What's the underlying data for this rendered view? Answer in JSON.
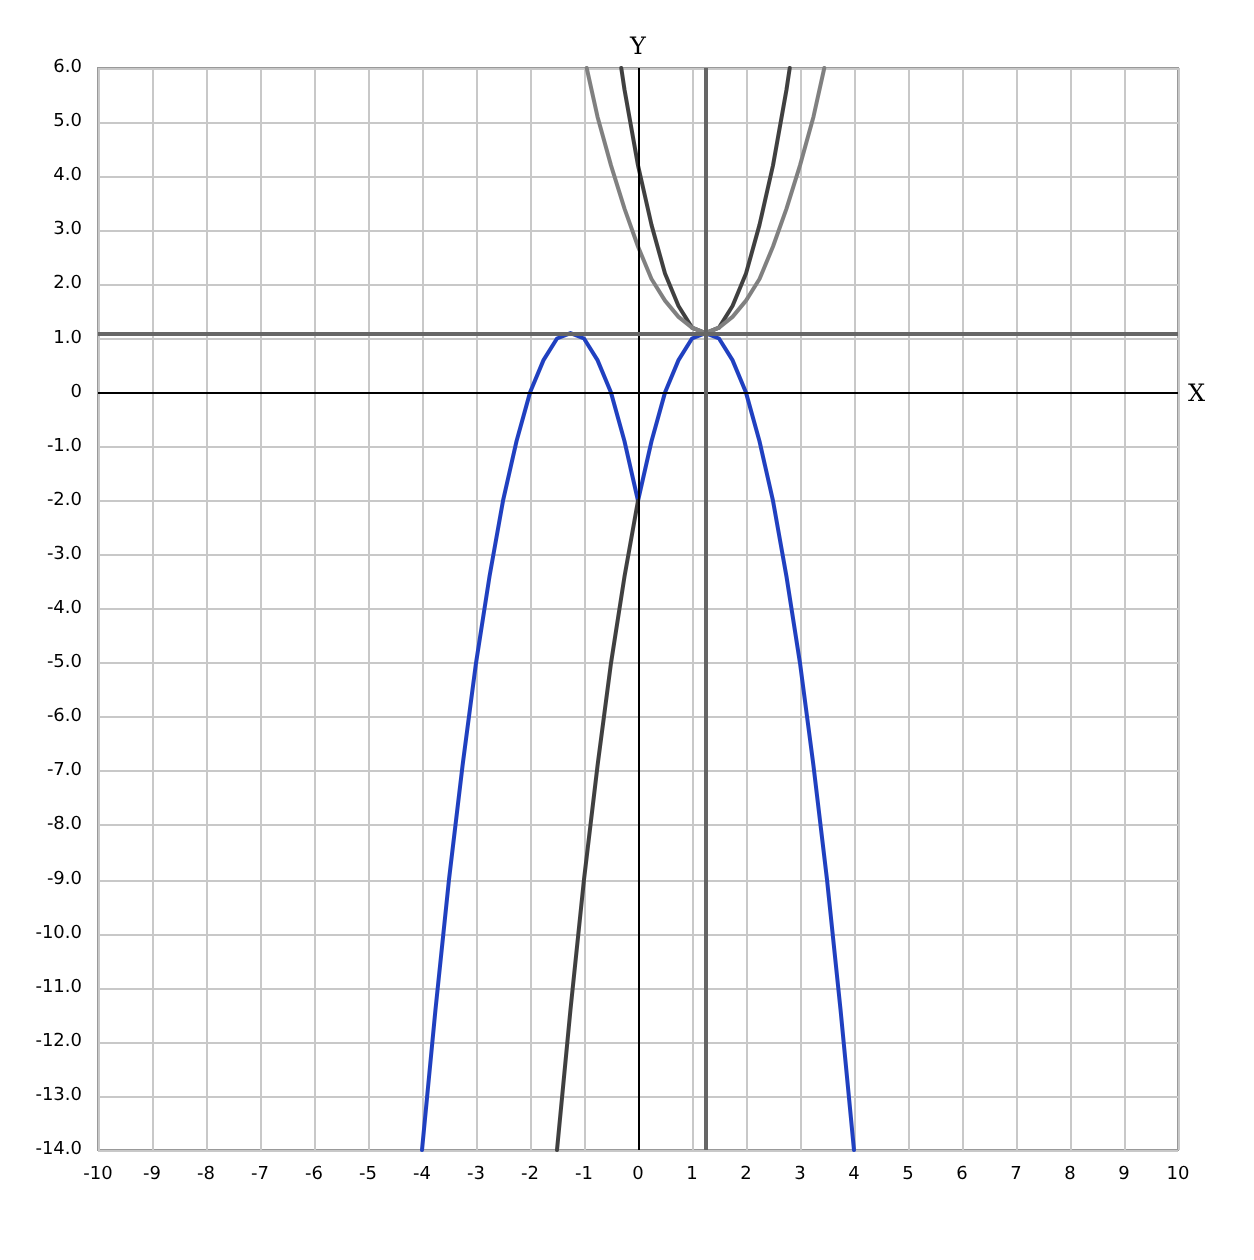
{
  "chart_data": {
    "type": "line",
    "xlabel": "X",
    "ylabel": "Y",
    "xlim": [
      -10,
      10
    ],
    "ylim": [
      -14,
      6
    ],
    "xticks": [
      -10,
      -9,
      -8,
      -7,
      -6,
      -5,
      -4,
      -3,
      -2,
      -1,
      0,
      1,
      2,
      3,
      4,
      5,
      6,
      7,
      8,
      9,
      10
    ],
    "yticks": [
      {
        "value": -14,
        "label": "-14.0"
      },
      {
        "value": -13,
        "label": "-13.0"
      },
      {
        "value": -12,
        "label": "-12.0"
      },
      {
        "value": -11,
        "label": "-11.0"
      },
      {
        "value": -10,
        "label": "-10.0"
      },
      {
        "value": -9,
        "label": "-9.0"
      },
      {
        "value": -8,
        "label": "-8.0"
      },
      {
        "value": -7,
        "label": "-7.0"
      },
      {
        "value": -6,
        "label": "-6.0"
      },
      {
        "value": -5,
        "label": "-5.0"
      },
      {
        "value": -4,
        "label": "-4.0"
      },
      {
        "value": -3,
        "label": "-3.0"
      },
      {
        "value": -2,
        "label": "-2.0"
      },
      {
        "value": -1,
        "label": "-1.0"
      },
      0,
      {
        "value": 1,
        "label": "1.0"
      },
      {
        "value": 2,
        "label": "2.0"
      },
      {
        "value": 3,
        "label": "3.0"
      },
      {
        "value": 4,
        "label": "4.0"
      },
      {
        "value": 5,
        "label": "5.0"
      },
      {
        "value": 6,
        "label": "6.0"
      }
    ],
    "grid": true,
    "marker": "none",
    "line_style": "solid",
    "series": [
      {
        "color": "#2040c0",
        "x": [
          -4,
          -3.75,
          -3.5,
          -3.25,
          -3,
          -2.75,
          -2.5,
          -2.25,
          -2,
          -1.75,
          -1.5,
          -1.25,
          -1,
          -0.75,
          -0.5,
          -0.25,
          0,
          0.25,
          0.5,
          0.75,
          1,
          1.25,
          1.5,
          1.75,
          2,
          2.25,
          2.5,
          2.75,
          3,
          3.25,
          3.5,
          3.75,
          4
        ],
        "values": [
          -14,
          -11.4,
          -9,
          -6.9,
          -5,
          -3.4,
          -2,
          -0.9,
          0,
          0.6,
          1,
          1.1,
          1,
          0.6,
          0,
          -0.9,
          -2,
          -0.9,
          0,
          0.6,
          1,
          1.1,
          1,
          0.6,
          0,
          -0.9,
          -2,
          -3.4,
          -5,
          -6.9,
          -9,
          -11.4,
          -14
        ]
      },
      {
        "color": "#404040",
        "x": [
          -1.5,
          -1.25,
          -1,
          -0.75,
          -0.5,
          -0.25,
          0
        ],
        "values": [
          -14,
          -11.4,
          -9,
          -6.9,
          -5,
          -3.4,
          -2
        ]
      },
      {
        "color": "#404040",
        "x": [
          -0.31,
          -0.25,
          0,
          0.25,
          0.5,
          0.75,
          1,
          1.25,
          1.5,
          1.75,
          2,
          2.25,
          2.5,
          2.75,
          2.81
        ],
        "values": [
          6,
          5.6,
          4.2,
          3.1,
          2.2,
          1.6,
          1.2,
          1.1,
          1.2,
          1.6,
          2.2,
          3.1,
          4.2,
          5.6,
          6
        ]
      },
      {
        "color": "#808080",
        "x": [
          -0.95,
          -0.75,
          -0.5,
          -0.25,
          0,
          0.25,
          0.5,
          0.75,
          1,
          1.25,
          1.5,
          1.75,
          2,
          2.25,
          2.5,
          2.75,
          3,
          3.25,
          3.45
        ],
        "values": [
          6,
          5.1,
          4.2,
          3.4,
          2.7,
          2.1,
          1.7,
          1.4,
          1.2,
          1.1,
          1.2,
          1.4,
          1.7,
          2.1,
          2.7,
          3.4,
          4.2,
          5.1,
          6
        ]
      }
    ],
    "ref_lines": [
      {
        "axis": "y",
        "value": 1.1,
        "color": "#666666"
      },
      {
        "axis": "x",
        "value": 1.25,
        "color": "#666666"
      }
    ]
  }
}
